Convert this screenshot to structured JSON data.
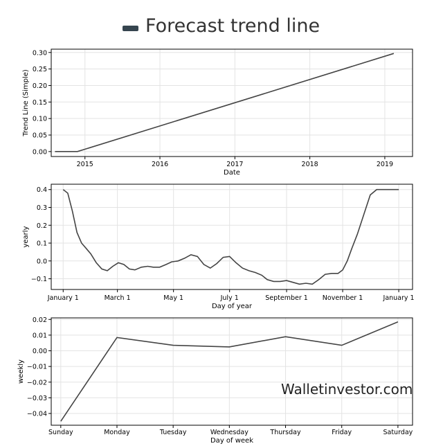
{
  "legend": {
    "label": "Forecast trend line",
    "color": "#36454f",
    "icon": "legend-line-icon"
  },
  "watermark": "Walletinvestor.com",
  "line_color": "#444444",
  "chart_data": [
    {
      "type": "line",
      "id": "trend",
      "xlabel": "Date",
      "ylabel": "Trend Line (Simple)",
      "xlim": [
        2014.55,
        2019.37
      ],
      "ylim": [
        -0.015,
        0.31
      ],
      "xticks": [
        {
          "v": 2015,
          "label": "2015"
        },
        {
          "v": 2016,
          "label": "2016"
        },
        {
          "v": 2017,
          "label": "2017"
        },
        {
          "v": 2018,
          "label": "2018"
        },
        {
          "v": 2019,
          "label": "2019"
        }
      ],
      "yticks": [
        {
          "v": 0.0,
          "label": "0.00"
        },
        {
          "v": 0.05,
          "label": "0.05"
        },
        {
          "v": 0.1,
          "label": "0.10"
        },
        {
          "v": 0.15,
          "label": "0.15"
        },
        {
          "v": 0.2,
          "label": "0.20"
        },
        {
          "v": 0.25,
          "label": "0.25"
        },
        {
          "v": 0.3,
          "label": "0.30"
        }
      ],
      "grid": true,
      "series": [
        {
          "x": [
            2014.6,
            2014.9,
            2019.12
          ],
          "y": [
            0.0,
            0.0,
            0.297
          ]
        }
      ]
    },
    {
      "type": "line",
      "id": "yearly",
      "xlabel": "Day of year",
      "ylabel": "yearly",
      "xlim": [
        -13,
        380
      ],
      "ylim": [
        -0.16,
        0.43
      ],
      "xticks": [
        {
          "v": 0,
          "label": "January 1"
        },
        {
          "v": 59,
          "label": "March 1"
        },
        {
          "v": 120,
          "label": "May 1"
        },
        {
          "v": 181,
          "label": "July 1"
        },
        {
          "v": 243,
          "label": "September 1"
        },
        {
          "v": 304,
          "label": "November 1"
        },
        {
          "v": 365,
          "label": "January 1"
        }
      ],
      "yticks": [
        {
          "v": -0.1,
          "label": "−0.1"
        },
        {
          "v": 0.0,
          "label": "0.0"
        },
        {
          "v": 0.1,
          "label": "0.1"
        },
        {
          "v": 0.2,
          "label": "0.2"
        },
        {
          "v": 0.3,
          "label": "0.3"
        },
        {
          "v": 0.4,
          "label": "0.4"
        }
      ],
      "grid": true,
      "series": [
        {
          "x": [
            0,
            5,
            10,
            15,
            20,
            25,
            30,
            36,
            42,
            48,
            54,
            60,
            66,
            72,
            78,
            85,
            92,
            98,
            105,
            112,
            118,
            125,
            132,
            139,
            146,
            153,
            160,
            167,
            174,
            181,
            188,
            195,
            202,
            209,
            216,
            222,
            229,
            236,
            243,
            250,
            257,
            264,
            271,
            278,
            285,
            292,
            299,
            304,
            309,
            314,
            320,
            327,
            334,
            341,
            347,
            352,
            357,
            361,
            365
          ],
          "y": [
            0.4,
            0.38,
            0.28,
            0.16,
            0.1,
            0.07,
            0.04,
            -0.01,
            -0.045,
            -0.055,
            -0.03,
            -0.01,
            -0.02,
            -0.045,
            -0.05,
            -0.035,
            -0.03,
            -0.035,
            -0.035,
            -0.02,
            -0.005,
            0.0,
            0.015,
            0.035,
            0.025,
            -0.02,
            -0.04,
            -0.015,
            0.02,
            0.025,
            -0.01,
            -0.04,
            -0.055,
            -0.065,
            -0.08,
            -0.105,
            -0.115,
            -0.115,
            -0.11,
            -0.12,
            -0.13,
            -0.125,
            -0.13,
            -0.105,
            -0.075,
            -0.07,
            -0.07,
            -0.05,
            0.0,
            0.07,
            0.15,
            0.26,
            0.37,
            0.4,
            0.4,
            0.4,
            0.4,
            0.4,
            0.4
          ]
        }
      ]
    },
    {
      "type": "line",
      "id": "weekly",
      "xlabel": "Day of week",
      "ylabel": "weekly",
      "xlim": [
        -0.17,
        6.26
      ],
      "ylim": [
        -0.0475,
        0.021
      ],
      "xticks": [
        {
          "v": 0,
          "label": "Sunday"
        },
        {
          "v": 1,
          "label": "Monday"
        },
        {
          "v": 2,
          "label": "Tuesday"
        },
        {
          "v": 3,
          "label": "Wednesday"
        },
        {
          "v": 4,
          "label": "Thursday"
        },
        {
          "v": 5,
          "label": "Friday"
        },
        {
          "v": 6,
          "label": "Saturday"
        }
      ],
      "yticks": [
        {
          "v": -0.04,
          "label": "−0.04"
        },
        {
          "v": -0.03,
          "label": "−0.03"
        },
        {
          "v": -0.02,
          "label": "−0.02"
        },
        {
          "v": -0.01,
          "label": "−0.01"
        },
        {
          "v": 0.0,
          "label": "0.00"
        },
        {
          "v": 0.01,
          "label": "0.01"
        },
        {
          "v": 0.02,
          "label": "0.02"
        }
      ],
      "grid": true,
      "series": [
        {
          "x": [
            0,
            1,
            2,
            3,
            4,
            5,
            6
          ],
          "y": [
            -0.045,
            0.0085,
            0.0035,
            0.0025,
            0.009,
            0.0035,
            0.0185
          ]
        }
      ]
    }
  ]
}
